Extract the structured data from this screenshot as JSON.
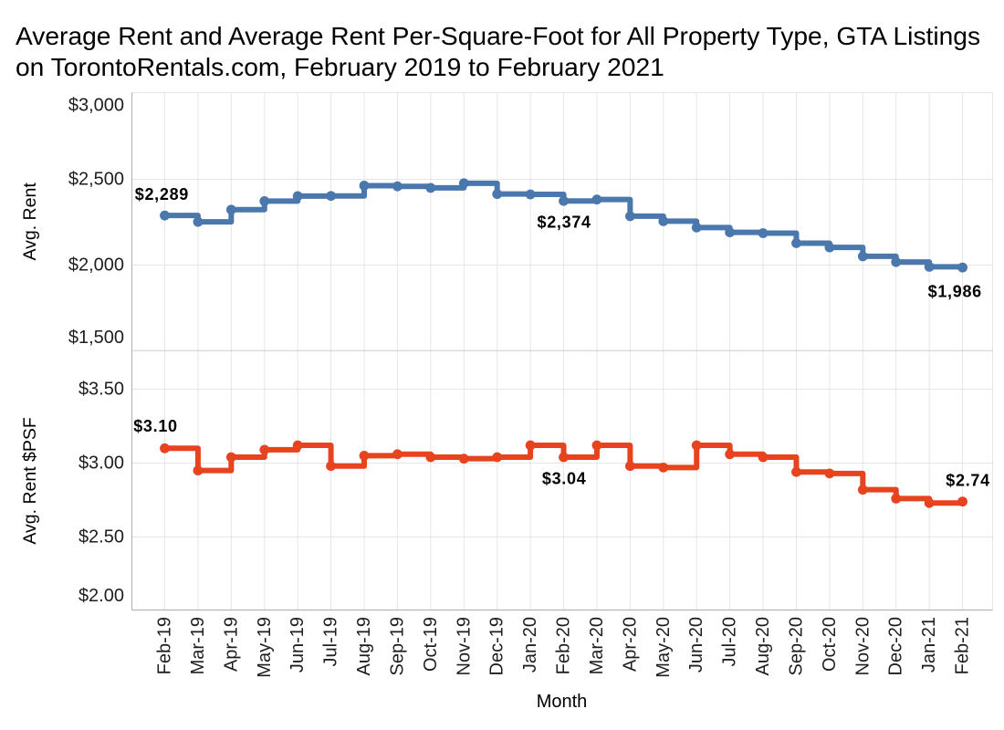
{
  "title": {
    "line1": "Average Rent and Average Rent Per-Square-Foot for All Property Type, GTA Listings",
    "line2": "on TorontoRentals.com, February 2019 to February 2021"
  },
  "colors": {
    "rent_line": "#4a78ad",
    "psf_line": "#e8431f",
    "gridline": "#e6e6e6",
    "axis_line": "#b5b5b5",
    "panel_divider": "#cdcdcd",
    "tick_text": "#1e1e1e",
    "label_text": "#000000"
  },
  "x_axis": {
    "label": "Month",
    "categories": [
      "Feb-19",
      "Mar-19",
      "Apr-19",
      "May-19",
      "Jun-19",
      "Jul-19",
      "Aug-19",
      "Sep-19",
      "Oct-19",
      "Nov-19",
      "Dec-19",
      "Jan-20",
      "Feb-20",
      "Mar-20",
      "Apr-20",
      "May-20",
      "Jun-20",
      "Jul-20",
      "Aug-20",
      "Sep-20",
      "Oct-20",
      "Nov-20",
      "Dec-20",
      "Jan-21",
      "Feb-21"
    ]
  },
  "chart_data": [
    {
      "type": "line",
      "step": "after",
      "name": "Avg. Rent",
      "ylabel": "Avg. Rent",
      "ylim": [
        1500,
        3000
      ],
      "yticks": [
        1500,
        2000,
        2500,
        3000
      ],
      "ytick_labels": [
        "$1,500",
        "$2,000",
        "$2,500",
        "$3,000"
      ],
      "categories": [
        "Feb-19",
        "Mar-19",
        "Apr-19",
        "May-19",
        "Jun-19",
        "Jul-19",
        "Aug-19",
        "Sep-19",
        "Oct-19",
        "Nov-19",
        "Dec-19",
        "Jan-20",
        "Feb-20",
        "Mar-20",
        "Apr-20",
        "May-20",
        "Jun-20",
        "Jul-20",
        "Aug-20",
        "Sep-20",
        "Oct-20",
        "Nov-20",
        "Dec-20",
        "Jan-21",
        "Feb-21"
      ],
      "values": [
        2289,
        2252,
        2323,
        2373,
        2402,
        2403,
        2463,
        2459,
        2450,
        2477,
        2414,
        2412,
        2374,
        2382,
        2285,
        2256,
        2219,
        2191,
        2186,
        2128,
        2103,
        2051,
        2018,
        1990,
        1986
      ],
      "annotations": [
        {
          "month": "Feb-19",
          "text": "$2,289",
          "placement": "above-left"
        },
        {
          "month": "Feb-20",
          "text": "$2,374",
          "placement": "below"
        },
        {
          "month": "Feb-21",
          "text": "$1,986",
          "placement": "below-left"
        }
      ]
    },
    {
      "type": "line",
      "step": "after",
      "name": "Avg. Rent $PSF",
      "ylabel": "Avg. Rent $PSF",
      "ylim": [
        2.0,
        3.75
      ],
      "yticks": [
        2.0,
        2.5,
        3.0,
        3.5
      ],
      "ytick_labels": [
        "$2.00",
        "$2.50",
        "$3.00",
        "$3.50"
      ],
      "categories": [
        "Feb-19",
        "Mar-19",
        "Apr-19",
        "May-19",
        "Jun-19",
        "Jul-19",
        "Aug-19",
        "Sep-19",
        "Oct-19",
        "Nov-19",
        "Dec-19",
        "Jan-20",
        "Feb-20",
        "Mar-20",
        "Apr-20",
        "May-20",
        "Jun-20",
        "Jul-20",
        "Aug-20",
        "Sep-20",
        "Oct-20",
        "Nov-20",
        "Dec-20",
        "Jan-21",
        "Feb-21"
      ],
      "values": [
        3.1,
        2.95,
        3.04,
        3.09,
        3.12,
        2.98,
        3.05,
        3.06,
        3.04,
        3.03,
        3.04,
        3.12,
        3.04,
        3.12,
        2.98,
        2.97,
        3.12,
        3.06,
        3.04,
        2.94,
        2.93,
        2.82,
        2.76,
        2.73,
        2.74
      ],
      "annotations": [
        {
          "month": "Feb-19",
          "text": "$3.10",
          "placement": "above"
        },
        {
          "month": "Feb-20",
          "text": "$3.04",
          "placement": "below"
        },
        {
          "month": "Feb-21",
          "text": "$2.74",
          "placement": "above-right"
        }
      ]
    }
  ]
}
